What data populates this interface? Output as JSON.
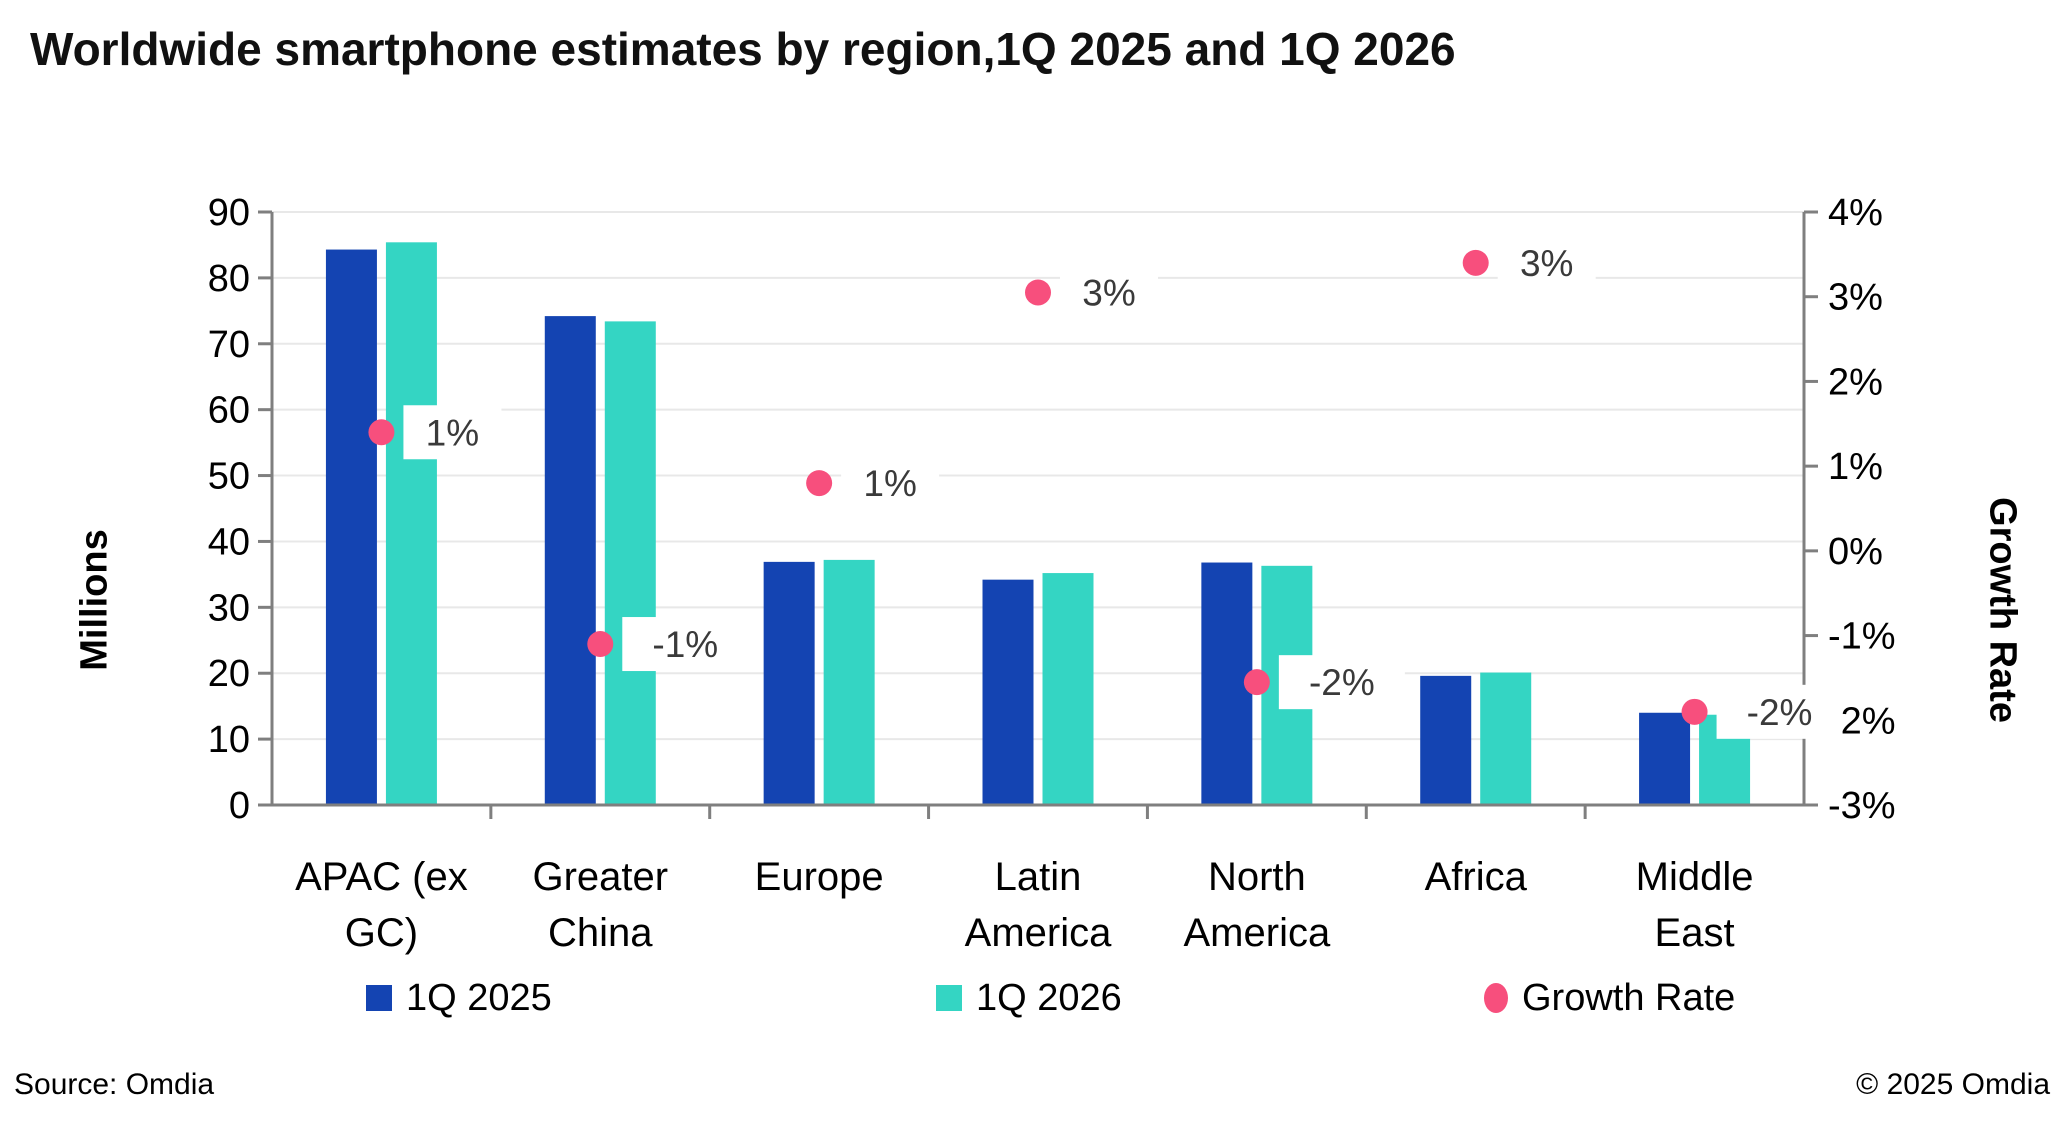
{
  "title": "Worldwide smartphone estimates by region,1Q 2025 and 1Q 2026",
  "footer": {
    "source": "Source: Omdia",
    "copyright": "© 2025 Omdia"
  },
  "colors": {
    "bar_2025": "#1444b2",
    "bar_2026": "#34d5c3",
    "growth_dot": "#f74f7d",
    "axis_line": "#7f7f7f",
    "gridline": "#e8e8e8",
    "growth_label_text": "#3a3a3a",
    "tick_label_text": "#000000"
  },
  "chart_data": {
    "type": "bar",
    "title": "Worldwide smartphone estimates by region,1Q 2025 and 1Q 2026",
    "categories": [
      "APAC (ex GC)",
      "Greater China",
      "Europe",
      "Latin America",
      "North America",
      "Africa",
      "Middle East"
    ],
    "categories_lines": [
      [
        "APAC (ex",
        "GC)"
      ],
      [
        "Greater",
        "China"
      ],
      [
        "Europe"
      ],
      [
        "Latin",
        "America"
      ],
      [
        "North",
        "America"
      ],
      [
        "Africa"
      ],
      [
        "Middle",
        "East"
      ]
    ],
    "series": [
      {
        "name": "1Q 2025",
        "type": "bar",
        "axis": "left",
        "color": "#1444b2",
        "values": [
          84.3,
          74.2,
          36.9,
          34.2,
          36.8,
          19.6,
          14.0
        ]
      },
      {
        "name": "1Q 2026",
        "type": "bar",
        "axis": "left",
        "color": "#34d5c3",
        "values": [
          85.4,
          73.4,
          37.2,
          35.2,
          36.3,
          20.1,
          13.7
        ]
      },
      {
        "name": "Growth Rate",
        "type": "scatter",
        "axis": "right",
        "color": "#f74f7d",
        "values": [
          1.4,
          -1.1,
          0.8,
          3.05,
          -1.55,
          3.4,
          -1.9
        ],
        "point_labels": [
          "1%",
          "-1%",
          "1%",
          "3%",
          "-2%",
          "3%",
          "-2%"
        ]
      }
    ],
    "left_axis": {
      "label": "Millions",
      "min": 0,
      "max": 90,
      "step": 10,
      "ticks": [
        "90",
        "80",
        "70",
        "60",
        "50",
        "40",
        "30",
        "20",
        "10",
        "0"
      ]
    },
    "right_axis": {
      "label": "Growth Rate",
      "min": -3,
      "max": 4,
      "step": 1,
      "ticks": [
        "4%",
        "3%",
        "2%",
        "1%",
        "0%",
        "-1%",
        "-2%",
        "-3%"
      ]
    },
    "grid": true,
    "legend_position": "bottom"
  }
}
